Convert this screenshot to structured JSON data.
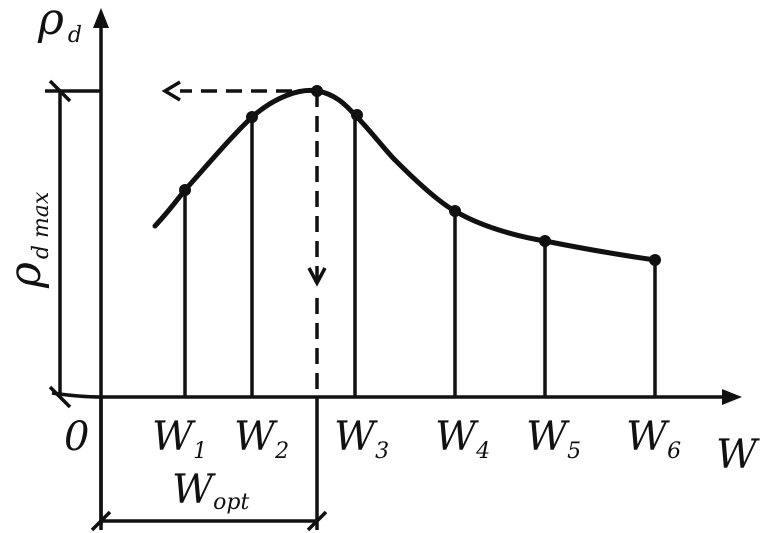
{
  "labels": {
    "y_axis": "ρ",
    "y_axis_sub": "d",
    "x_axis": "W",
    "origin": "0",
    "y_max": "ρ",
    "y_max_sub": "d max",
    "w_opt": "W",
    "w_opt_sub": "opt"
  },
  "points": [
    {
      "main": "W",
      "sub": "1"
    },
    {
      "main": "W",
      "sub": "2"
    },
    {
      "main": "W",
      "sub": "3"
    },
    {
      "main": "W",
      "sub": "4"
    },
    {
      "main": "W",
      "sub": "5"
    },
    {
      "main": "W",
      "sub": "6"
    }
  ]
}
